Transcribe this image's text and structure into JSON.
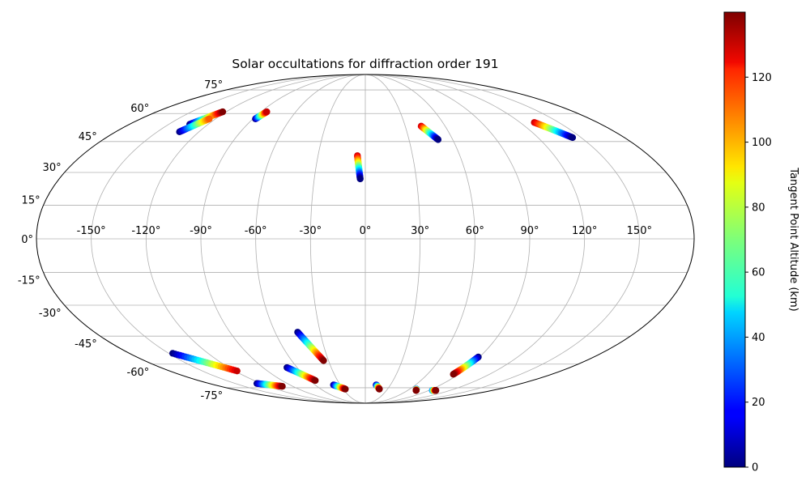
{
  "chart_data": {
    "type": "scatter",
    "projection": "mollweide",
    "title": "Solar occultations for diffraction order 191",
    "lon_ticks": [
      "-150°",
      "-120°",
      "-90°",
      "-60°",
      "-30°",
      "0°",
      "30°",
      "60°",
      "90°",
      "120°",
      "150°"
    ],
    "lat_ticks": [
      "75°",
      "60°",
      "45°",
      "30°",
      "15°",
      "0°",
      "-15°",
      "-30°",
      "-45°",
      "-60°",
      "-75°"
    ],
    "grid": true,
    "colorbar": {
      "label": "Tangent Point Altitude (km)",
      "ticks": [
        "0",
        "20",
        "40",
        "60",
        "80",
        "100",
        "120"
      ],
      "range": [
        0,
        140
      ],
      "colormap": "jet"
    },
    "tracks": [
      {
        "lon_start": -134,
        "lat_start": 54,
        "lon_end": -123,
        "lat_end": 61,
        "alt_start": 0,
        "alt_end": 140
      },
      {
        "lon_start": -134,
        "lat_start": 50,
        "lon_end": -125,
        "lat_end": 57,
        "alt_start": 0,
        "alt_end": 110
      },
      {
        "lon_start": -88,
        "lat_start": 57,
        "lon_end": -85,
        "lat_end": 61,
        "alt_start": 0,
        "alt_end": 130
      },
      {
        "lon_start": -5,
        "lat_start": 38,
        "lon_end": -3,
        "lat_end": 27,
        "alt_start": 130,
        "alt_end": 0
      },
      {
        "lon_start": 42,
        "lat_start": 53,
        "lon_end": 50,
        "lat_end": 46,
        "alt_start": 130,
        "alt_end": 0
      },
      {
        "lon_start": 131,
        "lat_start": 55,
        "lon_end": 144,
        "lat_end": 47,
        "alt_start": 130,
        "alt_end": 0
      },
      {
        "lon_start": -147,
        "lat_start": -54,
        "lon_end": -118,
        "lat_end": -64,
        "alt_start": 0,
        "alt_end": 130
      },
      {
        "lon_start": -125,
        "lat_start": -72,
        "lon_end": -103,
        "lat_end": -74,
        "alt_start": 0,
        "alt_end": 140
      },
      {
        "lon_start": -69,
        "lat_start": -62,
        "lon_end": -54,
        "lat_end": -70,
        "alt_start": 0,
        "alt_end": 140
      },
      {
        "lon_start": -45,
        "lat_start": -43,
        "lon_end": -34,
        "lat_end": -58,
        "alt_start": 0,
        "alt_end": 140
      },
      {
        "lon_start": -38,
        "lat_start": -73,
        "lon_end": -27,
        "lat_end": -76,
        "alt_start": 0,
        "alt_end": 140
      },
      {
        "lon_start": 13,
        "lat_start": -73,
        "lon_end": 19,
        "lat_end": -76,
        "alt_start": 0,
        "alt_end": 140
      },
      {
        "lon_start": 69,
        "lat_start": -76,
        "lon_end": 72,
        "lat_end": -77,
        "alt_start": 20,
        "alt_end": 140
      },
      {
        "lon_start": 89,
        "lat_start": -56,
        "lon_end": 85,
        "lat_end": -66,
        "alt_start": 0,
        "alt_end": 140
      },
      {
        "lon_start": 95,
        "lat_start": -77,
        "lon_end": 100,
        "lat_end": -77,
        "alt_start": 30,
        "alt_end": 140
      }
    ]
  }
}
